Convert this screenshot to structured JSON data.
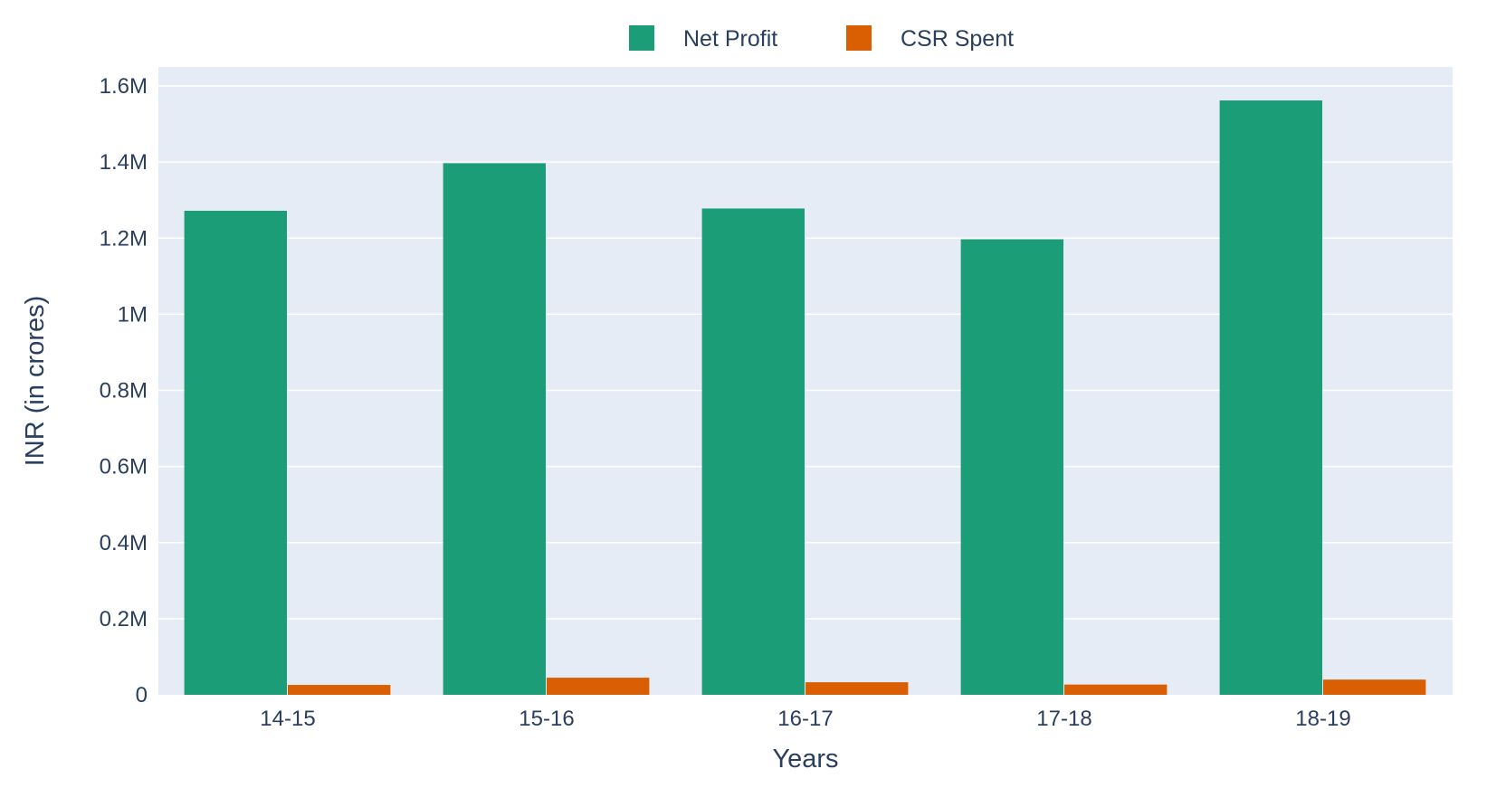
{
  "chart_data": {
    "type": "bar",
    "categories": [
      "14-15",
      "15-16",
      "16-17",
      "17-18",
      "18-19"
    ],
    "series": [
      {
        "name": "Net Profit",
        "color": "#1b9e77",
        "values": [
          1272000,
          1397000,
          1278000,
          1197000,
          1562000
        ]
      },
      {
        "name": "CSR Spent",
        "color": "#d95f02",
        "values": [
          26000,
          45000,
          33000,
          27000,
          40000
        ]
      }
    ],
    "xlabel": "Years",
    "ylabel": "INR (in crores)",
    "ylim": [
      0,
      1650000
    ],
    "yticks": [
      0,
      200000,
      400000,
      600000,
      800000,
      1000000,
      1200000,
      1400000,
      1600000
    ],
    "ytick_labels": [
      "0",
      "0.2M",
      "0.4M",
      "0.6M",
      "0.8M",
      "1M",
      "1.2M",
      "1.4M",
      "1.6M"
    ],
    "grid": true,
    "legend_position": "top-center",
    "plot_background": "#e5ecf6"
  }
}
